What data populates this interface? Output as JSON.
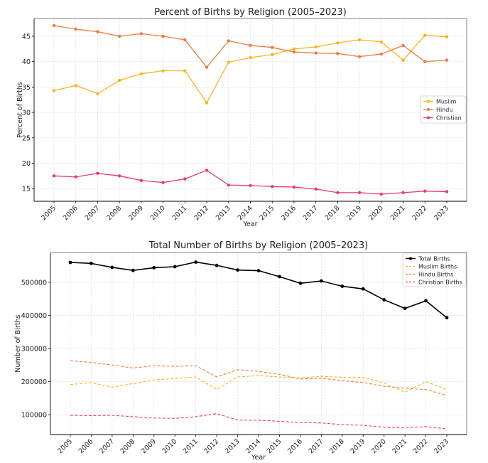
{
  "chart_data": [
    {
      "type": "line",
      "title": "Percent of Births by Religion (2005–2023)",
      "xlabel": "Year",
      "ylabel": "Percent of Births",
      "ylim": [
        12.5,
        48.5
      ],
      "yticks": [
        15,
        20,
        25,
        30,
        35,
        40,
        45
      ],
      "legend_position": "center-right",
      "categories": [
        "2005",
        "2006",
        "2007",
        "2008",
        "2009",
        "2010",
        "2011",
        "2012",
        "2013",
        "2014",
        "2015",
        "2016",
        "2017",
        "2018",
        "2019",
        "2020",
        "2021",
        "2022",
        "2023"
      ],
      "series": [
        {
          "name": "Muslim",
          "color": "#f9b41c",
          "values": [
            34.3,
            35.3,
            33.7,
            36.3,
            37.6,
            38.2,
            38.2,
            31.9,
            39.9,
            40.8,
            41.4,
            42.5,
            42.9,
            43.7,
            44.3,
            43.9,
            40.3,
            45.2,
            44.9
          ]
        },
        {
          "name": "Hindu",
          "color": "#f07a3a",
          "values": [
            47.1,
            46.4,
            45.9,
            45.0,
            45.5,
            45.0,
            44.3,
            38.9,
            44.1,
            43.2,
            42.8,
            41.9,
            41.7,
            41.6,
            41.0,
            41.5,
            43.2,
            40.0,
            40.3
          ]
        },
        {
          "name": "Christian",
          "color": "#ec3a5e",
          "values": [
            17.5,
            17.3,
            18.0,
            17.5,
            16.6,
            16.2,
            16.9,
            18.6,
            15.7,
            15.6,
            15.4,
            15.3,
            14.9,
            14.2,
            14.2,
            13.9,
            14.2,
            14.5,
            14.4
          ]
        }
      ]
    },
    {
      "type": "line",
      "title": "Total Number of Births by Religion (2005–2023)",
      "xlabel": "Year",
      "ylabel": "Number of Births",
      "ylim": [
        40000,
        590000
      ],
      "yticks": [
        100000,
        200000,
        300000,
        400000,
        500000
      ],
      "legend_position": "top-right",
      "categories": [
        "2005",
        "2006",
        "2007",
        "2008",
        "2009",
        "2010",
        "2011",
        "2012",
        "2013",
        "2014",
        "2015",
        "2016",
        "2017",
        "2018",
        "2019",
        "2020",
        "2021",
        "2022",
        "2023"
      ],
      "series": [
        {
          "name": "Total Births",
          "color": "#000000",
          "style": "solid-marker",
          "values": [
            560000,
            557000,
            545000,
            536000,
            544000,
            547000,
            561000,
            551000,
            537000,
            535000,
            517000,
            497000,
            504000,
            488000,
            480000,
            447000,
            421000,
            444000,
            393000
          ]
        },
        {
          "name": "Muslim Births",
          "color": "#f9b41c",
          "style": "dashed",
          "values": [
            191000,
            197000,
            183000,
            194000,
            205000,
            209000,
            214000,
            176000,
            214000,
            218000,
            214000,
            211000,
            216000,
            213000,
            213000,
            196000,
            168000,
            200000,
            176000
          ]
        },
        {
          "name": "Hindu Births",
          "color": "#f07a3a",
          "style": "dashed",
          "values": [
            263000,
            258000,
            250000,
            241000,
            248000,
            246000,
            248000,
            214000,
            236000,
            231000,
            222000,
            208000,
            210000,
            203000,
            197000,
            186000,
            180000,
            176000,
            158000
          ]
        },
        {
          "name": "Christian Births",
          "color": "#ec3a5e",
          "style": "dashed",
          "values": [
            98000,
            97000,
            98000,
            94000,
            90000,
            89000,
            94000,
            103000,
            84000,
            83000,
            80000,
            76000,
            75000,
            70000,
            68000,
            62000,
            60000,
            64000,
            57000
          ]
        }
      ]
    }
  ]
}
